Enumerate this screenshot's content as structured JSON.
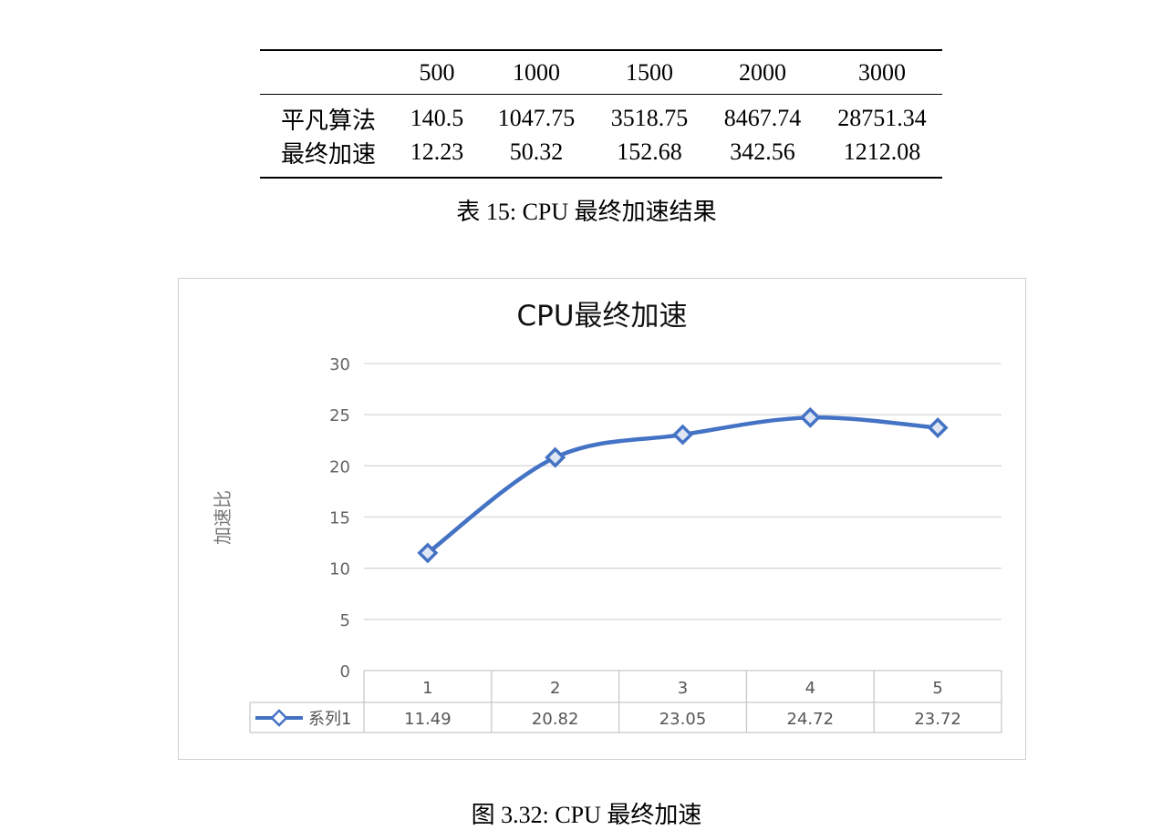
{
  "table": {
    "headers": [
      "",
      "500",
      "1000",
      "1500",
      "2000",
      "3000"
    ],
    "rows": [
      {
        "label": "平凡算法",
        "values": [
          "140.5",
          "1047.75",
          "3518.75",
          "8467.74",
          "28751.34"
        ]
      },
      {
        "label": "最终加速",
        "values": [
          "12.23",
          "50.32",
          "152.68",
          "342.56",
          "1212.08"
        ]
      }
    ],
    "caption": "表 15: CPU 最终加速结果"
  },
  "figure_caption": "图 3.32: CPU 最终加速",
  "chart_data": {
    "type": "line",
    "title": "CPU最终加速",
    "ylabel": "加速比",
    "xlabel": "",
    "ylim": [
      0,
      30
    ],
    "yticks": [
      0,
      5,
      10,
      15,
      20,
      25,
      30
    ],
    "grid": true,
    "categories": [
      "1",
      "2",
      "3",
      "4",
      "5"
    ],
    "series": [
      {
        "name": "系列1",
        "values": [
          11.49,
          20.82,
          23.05,
          24.72,
          23.72
        ],
        "color": "#4472C4",
        "marker": "diamond"
      }
    ],
    "data_table": true,
    "value_labels": [
      "11.49",
      "20.82",
      "23.05",
      "24.72",
      "23.72"
    ]
  }
}
